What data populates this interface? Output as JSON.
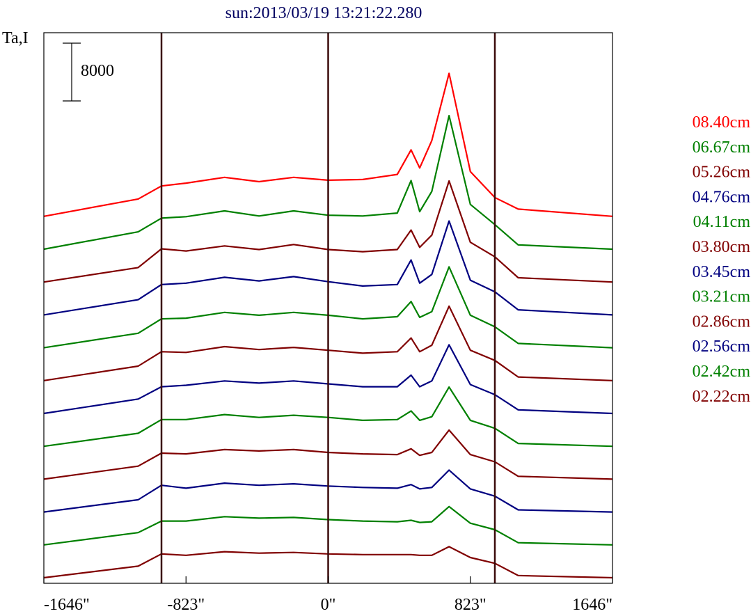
{
  "chart_data": {
    "type": "line",
    "title": "sun:2013/03/19 13:21:22.280",
    "ylabel": "Ta,I",
    "scale_bar_label": "8000",
    "x_ticks": [
      "-1646\"",
      "-823\"",
      "0\"",
      "823\"",
      "1646\""
    ],
    "x_tick_values": [
      -1646,
      -823,
      0,
      823,
      1646
    ],
    "xlim": [
      -1646,
      1646
    ],
    "vertical_lines": [
      -965,
      0,
      965
    ],
    "grid": false,
    "legend_placement": "right",
    "profile_x": [
      -1646,
      -1100,
      -965,
      -823,
      -600,
      -400,
      -200,
      0,
      200,
      400,
      480,
      530,
      600,
      700,
      823,
      965,
      1100,
      1646
    ],
    "series": [
      {
        "name": "08.40cm",
        "color": "#ff0000",
        "offset": 12,
        "values": [
          0,
          2400,
          4200,
          4600,
          5400,
          4800,
          5400,
          5000,
          5100,
          5800,
          9200,
          6700,
          10500,
          19800,
          6200,
          2600,
          1000,
          0
        ]
      },
      {
        "name": "06.67cm",
        "color": "#008000",
        "offset": 11,
        "values": [
          0,
          2400,
          4300,
          4500,
          5300,
          4600,
          5300,
          4700,
          4600,
          5000,
          9500,
          5200,
          8000,
          18500,
          6200,
          3400,
          600,
          0
        ]
      },
      {
        "name": "05.26cm",
        "color": "#800000",
        "offset": 10,
        "values": [
          0,
          2000,
          4600,
          4300,
          5000,
          4500,
          5200,
          4500,
          4200,
          4500,
          7200,
          4800,
          6500,
          14000,
          5500,
          3500,
          600,
          0
        ]
      },
      {
        "name": "04.76cm",
        "color": "#000080",
        "offset": 9,
        "values": [
          0,
          2100,
          4200,
          4400,
          5200,
          4700,
          5300,
          4600,
          4000,
          4200,
          7600,
          4400,
          5600,
          13000,
          4800,
          3200,
          700,
          0
        ]
      },
      {
        "name": "04.11cm",
        "color": "#008000",
        "offset": 8,
        "values": [
          0,
          2000,
          4000,
          4100,
          4900,
          4500,
          4900,
          4500,
          4000,
          4300,
          6400,
          4200,
          5000,
          11200,
          4500,
          2900,
          600,
          0
        ]
      },
      {
        "name": "03.80cm",
        "color": "#800000",
        "offset": 7,
        "values": [
          0,
          2000,
          4000,
          3900,
          4700,
          4300,
          4600,
          4200,
          3800,
          4000,
          5900,
          4000,
          4900,
          10300,
          4200,
          2800,
          500,
          0
        ]
      },
      {
        "name": "03.45cm",
        "color": "#000080",
        "offset": 6,
        "values": [
          0,
          2000,
          3700,
          3900,
          4500,
          4200,
          4500,
          4100,
          3700,
          3700,
          5300,
          3700,
          4500,
          9500,
          4000,
          2600,
          500,
          0
        ]
      },
      {
        "name": "03.21cm",
        "color": "#008000",
        "offset": 5,
        "values": [
          0,
          1800,
          3700,
          3700,
          4400,
          4000,
          4300,
          4000,
          3600,
          3700,
          4900,
          3600,
          4100,
          8200,
          3600,
          2500,
          400,
          0
        ]
      },
      {
        "name": "02.86cm",
        "color": "#800000",
        "offset": 4,
        "values": [
          0,
          1800,
          3600,
          3500,
          4100,
          3900,
          4100,
          3700,
          3500,
          3400,
          4200,
          3300,
          3700,
          6800,
          3400,
          2400,
          400,
          0
        ]
      },
      {
        "name": "02.56cm",
        "color": "#000080",
        "offset": 3,
        "values": [
          0,
          1700,
          3700,
          3300,
          4000,
          3700,
          3900,
          3600,
          3400,
          3300,
          3800,
          3200,
          3400,
          5800,
          3200,
          2200,
          300,
          0
        ]
      },
      {
        "name": "02.42cm",
        "color": "#008000",
        "offset": 2,
        "values": [
          0,
          1700,
          3300,
          3300,
          3900,
          3700,
          3800,
          3500,
          3300,
          3200,
          3400,
          3100,
          3200,
          5300,
          3000,
          2100,
          300,
          0
        ]
      },
      {
        "name": "02.22cm",
        "color": "#800000",
        "offset": 1,
        "values": [
          0,
          1600,
          3300,
          3100,
          3600,
          3400,
          3500,
          3300,
          3200,
          3200,
          3200,
          3100,
          3100,
          4300,
          2800,
          2000,
          300,
          0
        ]
      }
    ]
  }
}
